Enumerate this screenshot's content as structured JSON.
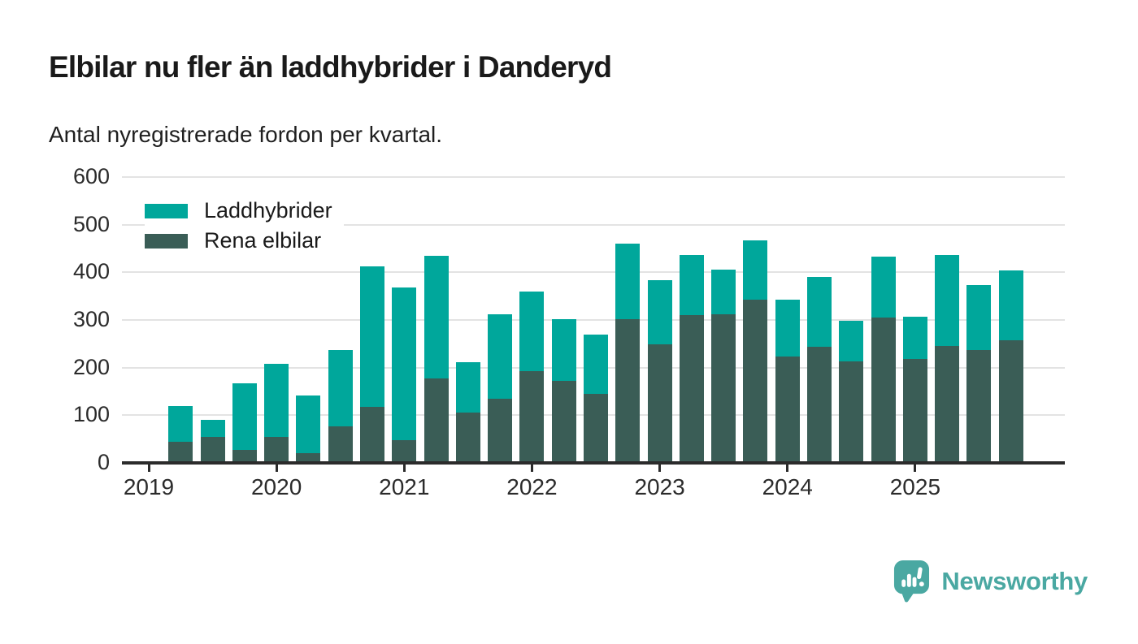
{
  "header": {
    "title": "Elbilar nu fler än laddhybrider i Danderyd",
    "subtitle": "Antal nyregistrerade fordon per kvartal."
  },
  "chart_data": {
    "type": "bar",
    "stacked": true,
    "title": "Elbilar nu fler än laddhybrider i Danderyd",
    "subtitle": "Antal nyregistrerade fordon per kvartal.",
    "xlabel": "",
    "ylabel": "",
    "ylim": [
      0,
      600
    ],
    "yticks": [
      0,
      100,
      200,
      300,
      400,
      500,
      600
    ],
    "grid": true,
    "legend_position": "top-left",
    "x": [
      "2019-Q2",
      "2019-Q3",
      "2019-Q4",
      "2020-Q1",
      "2020-Q2",
      "2020-Q3",
      "2020-Q4",
      "2021-Q1",
      "2021-Q2",
      "2021-Q3",
      "2021-Q4",
      "2022-Q1",
      "2022-Q2",
      "2022-Q3",
      "2022-Q4",
      "2023-Q1",
      "2023-Q2",
      "2023-Q3",
      "2023-Q4",
      "2024-Q1",
      "2024-Q2",
      "2024-Q3",
      "2024-Q4",
      "2025-Q1",
      "2025-Q2",
      "2025-Q3",
      "2025-Q4"
    ],
    "x_year_labels": [
      "2019",
      "2020",
      "2021",
      "2022",
      "2023",
      "2024",
      "2025"
    ],
    "series": [
      {
        "name": "Laddhybrider",
        "color": "#00a79b",
        "stack_order": "top",
        "values": [
          76,
          37,
          139,
          154,
          121,
          160,
          295,
          320,
          256,
          105,
          178,
          168,
          129,
          124,
          158,
          134,
          127,
          94,
          125,
          118,
          147,
          86,
          128,
          89,
          192,
          137,
          146
        ]
      },
      {
        "name": "Rena elbilar",
        "color": "#3a5d56",
        "stack_order": "bottom",
        "values": [
          44,
          54,
          28,
          54,
          21,
          77,
          117,
          48,
          178,
          106,
          134,
          192,
          172,
          145,
          302,
          249,
          310,
          312,
          342,
          224,
          243,
          213,
          305,
          218,
          245,
          237,
          258
        ]
      }
    ],
    "totals": [
      120,
      91,
      167,
      208,
      142,
      237,
      412,
      368,
      434,
      211,
      312,
      360,
      301,
      269,
      460,
      383,
      437,
      406,
      467,
      342,
      390,
      299,
      433,
      307,
      437,
      374,
      404
    ]
  },
  "colors": {
    "laddhybrider": "#00a79b",
    "rena_elbilar": "#3a5d56",
    "axis": "#2b2b2b",
    "grid": "#e3e3e3",
    "brand": "#4aa8a2"
  },
  "footer": {
    "brand": "Newsworthy"
  }
}
